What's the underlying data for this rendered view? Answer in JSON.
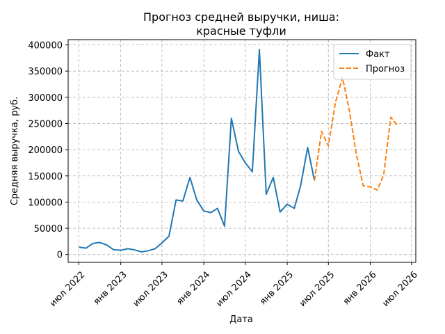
{
  "chart_data": {
    "type": "line",
    "title_lines": [
      "Прогноз средней выручки, ниша:",
      "красные туфли"
    ],
    "xlabel": "Дата",
    "ylabel": "Средняя выручка, руб.",
    "xlim": [
      "2022-05-15",
      "2026-07-20"
    ],
    "ylim": [
      -15000,
      410000
    ],
    "x_ticks": [
      {
        "date": "2022-07-01",
        "label": "июл 2022"
      },
      {
        "date": "2023-01-01",
        "label": "янв 2023"
      },
      {
        "date": "2023-07-01",
        "label": "июл 2023"
      },
      {
        "date": "2024-01-01",
        "label": "янв 2024"
      },
      {
        "date": "2024-07-01",
        "label": "июл 2024"
      },
      {
        "date": "2025-01-01",
        "label": "янв 2025"
      },
      {
        "date": "2025-07-01",
        "label": "июл 2025"
      },
      {
        "date": "2026-01-01",
        "label": "янв 2026"
      },
      {
        "date": "2026-07-01",
        "label": "июл 2026"
      }
    ],
    "y_ticks": [
      0,
      50000,
      100000,
      150000,
      200000,
      250000,
      300000,
      350000,
      400000
    ],
    "grid": true,
    "legend_position": "top-right",
    "series": [
      {
        "name": "Факт",
        "color": "#1f77b4",
        "style": "solid",
        "x": [
          "2022-07-01",
          "2022-08-01",
          "2022-09-01",
          "2022-10-01",
          "2022-11-01",
          "2022-12-01",
          "2023-01-01",
          "2023-02-01",
          "2023-03-01",
          "2023-04-01",
          "2023-05-01",
          "2023-06-01",
          "2023-07-01",
          "2023-08-01",
          "2023-09-01",
          "2023-10-01",
          "2023-11-01",
          "2023-12-01",
          "2024-01-01",
          "2024-02-01",
          "2024-03-01",
          "2024-04-01",
          "2024-05-01",
          "2024-06-01",
          "2024-07-01",
          "2024-08-01",
          "2024-09-01",
          "2024-10-01",
          "2024-11-01",
          "2024-12-01",
          "2025-01-01",
          "2025-02-01",
          "2025-03-01",
          "2025-04-01",
          "2025-05-01"
        ],
        "y": [
          14000,
          12000,
          21000,
          23000,
          18000,
          9000,
          8000,
          11000,
          9000,
          5000,
          7000,
          11000,
          22000,
          35000,
          104000,
          102000,
          147000,
          104000,
          83000,
          80000,
          88000,
          54000,
          260000,
          197000,
          175000,
          158000,
          391000,
          115000,
          147000,
          81000,
          96000,
          88000,
          131000,
          204000,
          141000
        ]
      },
      {
        "name": "Прогноз",
        "color": "#ff7f0e",
        "style": "dashed",
        "x": [
          "2025-05-01",
          "2025-06-01",
          "2025-07-01",
          "2025-08-01",
          "2025-09-01",
          "2025-10-01",
          "2025-11-01",
          "2025-12-01",
          "2026-01-01",
          "2026-02-01",
          "2026-03-01",
          "2026-04-01",
          "2026-05-01"
        ],
        "y": [
          141000,
          235000,
          207000,
          290000,
          338000,
          275000,
          191000,
          131000,
          129000,
          123000,
          152000,
          262000,
          246000
        ]
      }
    ]
  }
}
